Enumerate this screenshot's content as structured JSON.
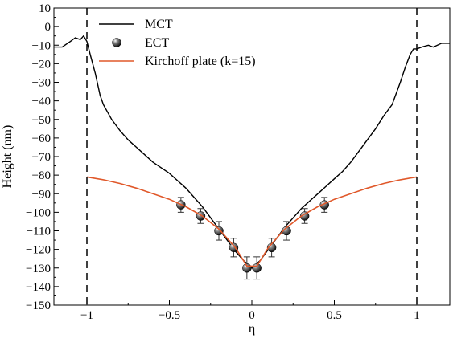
{
  "chart_data": {
    "type": "line",
    "xlabel": "η",
    "ylabel": "Height (nm)",
    "xlim": [
      -1.2,
      1.2
    ],
    "ylim": [
      -150,
      10
    ],
    "xticks": [
      -1,
      -0.5,
      0,
      0.5,
      1
    ],
    "xtick_labels": [
      "−1",
      "−0.5",
      "0",
      "0.5",
      "1"
    ],
    "yticks": [
      10,
      0,
      -10,
      -20,
      -30,
      -40,
      -50,
      -60,
      -70,
      -80,
      -90,
      -100,
      -110,
      -120,
      -130,
      -140,
      -150
    ],
    "ytick_labels": [
      "10",
      "0",
      "−10",
      "−20",
      "−30",
      "−40",
      "−50",
      "−60",
      "−70",
      "−80",
      "−90",
      "−100",
      "−110",
      "−120",
      "−130",
      "−140",
      "−150"
    ],
    "grid": false,
    "legend_position": "top-left",
    "vertical_reference_lines": [
      -1,
      1
    ],
    "series": [
      {
        "name": "MCT",
        "style": "line",
        "color": "#000000",
        "x": [
          -1.2,
          -1.15,
          -1.1,
          -1.07,
          -1.04,
          -1.02,
          -1.0,
          -0.98,
          -0.95,
          -0.92,
          -0.9,
          -0.85,
          -0.8,
          -0.75,
          -0.7,
          -0.65,
          -0.6,
          -0.55,
          -0.5,
          -0.45,
          -0.4,
          -0.35,
          -0.3,
          -0.25,
          -0.2,
          -0.15,
          -0.1,
          -0.05,
          0.0,
          0.05,
          0.1,
          0.15,
          0.2,
          0.25,
          0.3,
          0.35,
          0.4,
          0.45,
          0.5,
          0.55,
          0.6,
          0.65,
          0.7,
          0.75,
          0.8,
          0.85,
          0.9,
          0.93,
          0.96,
          0.98,
          1.0,
          1.03,
          1.07,
          1.1,
          1.15,
          1.2
        ],
        "y": [
          -11,
          -11,
          -8,
          -6,
          -7,
          -5,
          -8,
          -15,
          -25,
          -37,
          -42,
          -50,
          -56,
          -61,
          -65,
          -69,
          -73,
          -76,
          -79,
          -83,
          -87,
          -92,
          -97,
          -103,
          -109,
          -115,
          -121,
          -126,
          -130,
          -126,
          -120,
          -114,
          -108,
          -103,
          -98,
          -94,
          -90,
          -86,
          -82,
          -78,
          -73,
          -67,
          -61,
          -55,
          -48,
          -42,
          -30,
          -22,
          -15,
          -12,
          -12,
          -11,
          -10,
          -11,
          -9,
          -9
        ]
      },
      {
        "name": "ECT",
        "style": "markers",
        "color": "#333333",
        "x": [
          -0.43,
          -0.31,
          -0.2,
          -0.11,
          -0.03,
          0.03,
          0.12,
          0.21,
          0.32,
          0.44
        ],
        "y": [
          -96,
          -102,
          -110,
          -119,
          -130,
          -130,
          -119,
          -110,
          -102,
          -96
        ],
        "error": [
          4,
          4,
          5,
          5,
          6,
          6,
          5,
          5,
          4,
          4
        ]
      },
      {
        "name": "Kirchoff plate (k=15)",
        "style": "line",
        "color": "#e0582a",
        "x": [
          -1.0,
          -0.9,
          -0.8,
          -0.7,
          -0.6,
          -0.5,
          -0.4,
          -0.3,
          -0.2,
          -0.1,
          -0.03,
          0.03,
          0.1,
          0.2,
          0.3,
          0.4,
          0.5,
          0.6,
          0.7,
          0.8,
          0.9,
          1.0
        ],
        "y": [
          -81,
          -82.5,
          -84.5,
          -87,
          -90,
          -93,
          -97,
          -102,
          -109,
          -119,
          -129,
          -129,
          -119,
          -109,
          -102,
          -97,
          -93,
          -90,
          -87,
          -84.5,
          -82.5,
          -81
        ]
      }
    ]
  }
}
